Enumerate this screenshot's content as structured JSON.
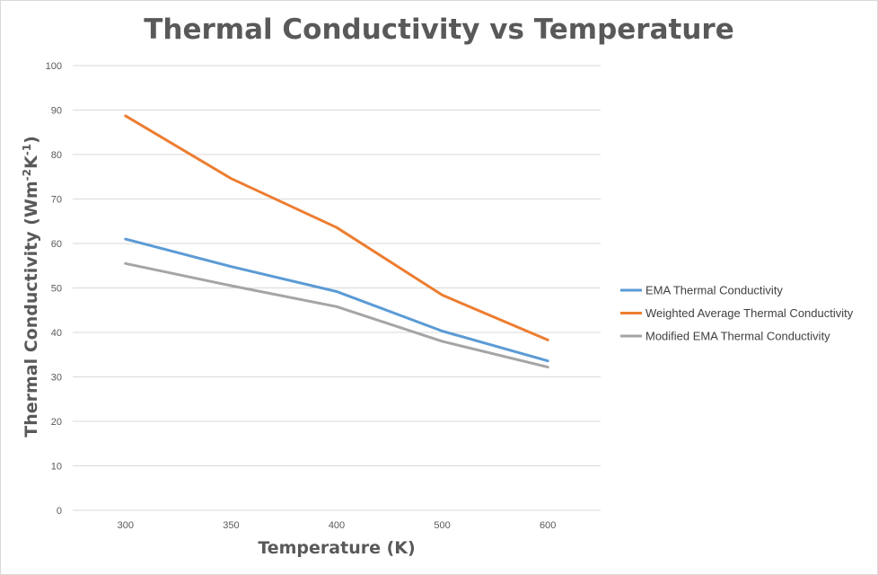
{
  "chart_data": {
    "type": "line",
    "title": "Thermal Conductivity vs Temperature",
    "xlabel": "Temperature (K)",
    "ylabel": {
      "base": "Thermal Conductivity (Wm",
      "sup1": "-2",
      "mid": "K",
      "sup2": "-1",
      "end": ")"
    },
    "categories": [
      "300",
      "350",
      "400",
      "500",
      "600"
    ],
    "ylim": [
      0,
      100
    ],
    "yticks": [
      0,
      10,
      20,
      30,
      40,
      50,
      60,
      70,
      80,
      90,
      100
    ],
    "grid": true,
    "legend_position": "right",
    "series": [
      {
        "name": "EMA Thermal Conductivity",
        "color": "#5b9bd5",
        "values": [
          61.0,
          54.8,
          49.2,
          40.3,
          33.6
        ]
      },
      {
        "name": "Weighted Average Thermal Conductivity",
        "color": "#ed7d31",
        "values": [
          88.7,
          74.6,
          63.6,
          48.4,
          38.3
        ]
      },
      {
        "name": "Modified EMA Thermal Conductivity",
        "color": "#a5a5a5",
        "values": [
          55.5,
          50.5,
          45.8,
          38.0,
          32.2
        ]
      }
    ]
  }
}
